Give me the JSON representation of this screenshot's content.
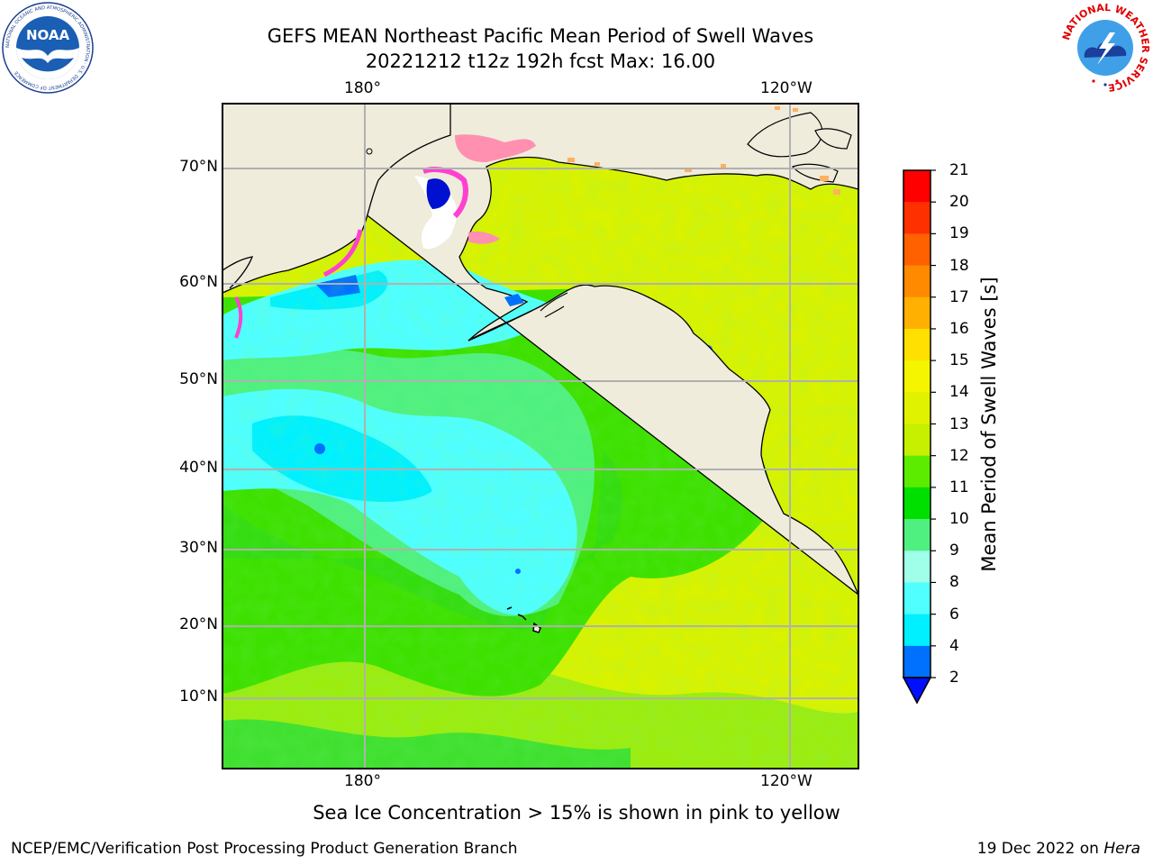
{
  "title": {
    "line1": "GEFS MEAN Northeast Pacific Mean Period of Swell Waves",
    "line2": "20221212 t12z 192h fcst   Max: 16.00"
  },
  "map": {
    "lat_labels": [
      "70°N",
      "60°N",
      "50°N",
      "40°N",
      "30°N",
      "20°N",
      "10°N"
    ],
    "lon_labels_top": [
      "180°",
      "120°W"
    ],
    "lon_labels_bottom": [
      "180°",
      "120°W"
    ],
    "land_color": "#efecdc",
    "grid_color": "#b0b0b0"
  },
  "colorbar": {
    "label": "Mean Period of Swell Waves [s]",
    "ticks": [
      "21",
      "20",
      "19",
      "18",
      "17",
      "16",
      "15",
      "14",
      "13",
      "12",
      "11",
      "10",
      "9",
      "8",
      "6",
      "4",
      "2"
    ],
    "colors": [
      "#ff0000",
      "#ff3000",
      "#ff6000",
      "#ff8a00",
      "#ffb000",
      "#ffe000",
      "#f5f500",
      "#e0f200",
      "#c6f000",
      "#5cec00",
      "#00e000",
      "#50f080",
      "#a0ffe8",
      "#50ffff",
      "#00f0ff",
      "#0070ff"
    ],
    "under_color": "#0010ff"
  },
  "chart_data": {
    "type": "heatmap",
    "variable": "Mean Period of Swell Waves [s]",
    "max": 16.0,
    "colorbar_range": [
      2,
      21
    ],
    "lat_ticks": [
      70,
      60,
      50,
      40,
      30,
      20,
      10
    ],
    "lon_ticks": [
      "180°",
      "120°W"
    ]
  },
  "note": "Sea Ice Concentration > 15% is shown in pink to yellow",
  "footer": {
    "left": "NCEP/EMC/Verification Post Processing Product Generation Branch",
    "date": "19 Dec 2022 on ",
    "host": "Hera"
  },
  "logos": {
    "noaa_text": "NOAA",
    "noaa_ring": "NATIONAL OCEANIC AND ATMOSPHERIC ADMINISTRATION · U.S. DEPARTMENT OF COMMERCE",
    "nws_ring": "NATIONAL WEATHER SERVICE"
  }
}
